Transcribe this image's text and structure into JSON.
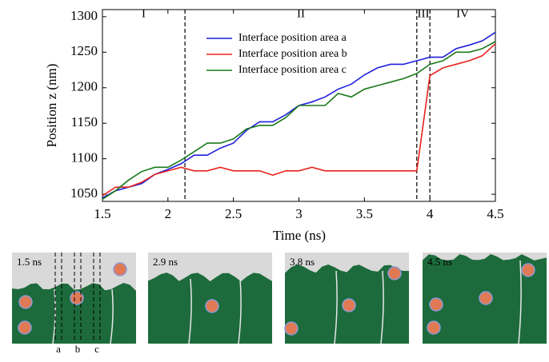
{
  "chart_data": {
    "type": "line",
    "xlabel": "Time (ns)",
    "ylabel": "Position z (nm)",
    "x": [
      1.5,
      1.6,
      1.7,
      1.8,
      1.9,
      2.0,
      2.1,
      2.2,
      2.3,
      2.4,
      2.5,
      2.6,
      2.7,
      2.8,
      2.9,
      3.0,
      3.1,
      3.2,
      3.3,
      3.4,
      3.5,
      3.6,
      3.7,
      3.8,
      3.9,
      4.0,
      4.1,
      4.2,
      4.3,
      4.4,
      4.5
    ],
    "series": [
      {
        "name": "Interface position area a",
        "color": "#1f1fdc",
        "values": [
          1045,
          1055,
          1060,
          1065,
          1078,
          1085,
          1093,
          1105,
          1105,
          1115,
          1122,
          1140,
          1152,
          1152,
          1162,
          1175,
          1180,
          1187,
          1198,
          1205,
          1218,
          1228,
          1233,
          1233,
          1238,
          1243,
          1243,
          1255,
          1260,
          1266,
          1278
        ]
      },
      {
        "name": "Interface position area b",
        "color": "#e8231f",
        "values": [
          1048,
          1060,
          1060,
          1067,
          1078,
          1083,
          1088,
          1083,
          1083,
          1088,
          1083,
          1083,
          1083,
          1077,
          1083,
          1083,
          1088,
          1083,
          1083,
          1083,
          1083,
          1083,
          1083,
          1083,
          1083,
          1217,
          1228,
          1233,
          1238,
          1245,
          1262
        ]
      },
      {
        "name": "Interface position area c",
        "color": "#1a7a1a",
        "values": [
          1043,
          1055,
          1070,
          1082,
          1088,
          1088,
          1098,
          1110,
          1122,
          1122,
          1128,
          1142,
          1147,
          1147,
          1158,
          1175,
          1175,
          1175,
          1192,
          1187,
          1198,
          1203,
          1208,
          1213,
          1220,
          1233,
          1238,
          1250,
          1250,
          1255,
          1265
        ]
      }
    ],
    "xlim": [
      1.5,
      4.5
    ],
    "xticks": [
      1.5,
      2,
      2.5,
      3,
      3.5,
      4,
      4.5
    ],
    "ylim": [
      1040,
      1310
    ],
    "yticks": [
      1050,
      1100,
      1150,
      1200,
      1250,
      1300
    ],
    "vlines": [
      2.13,
      3.9,
      4.0
    ],
    "regions": [
      "I",
      "II",
      "III",
      "IV"
    ],
    "legend": "upper-center"
  },
  "snapshots": {
    "panels": [
      "1.5 ns",
      "2.9 ns",
      "3.8 ns",
      "4.5 ns"
    ],
    "areas": [
      "a",
      "b",
      "c"
    ]
  }
}
